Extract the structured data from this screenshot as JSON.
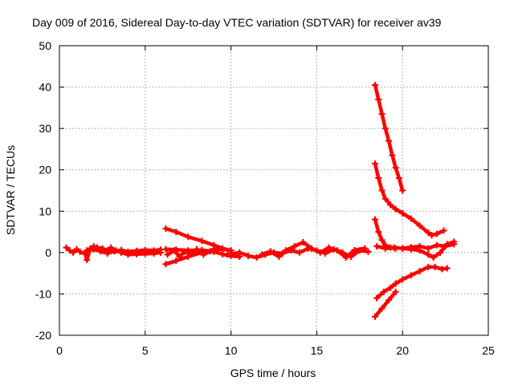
{
  "chart_data": {
    "type": "scatter",
    "title": "Day 009 of 2016, Sidereal Day-to-day VTEC variation (SDTVAR) for receiver av39",
    "xlabel": "GPS time / hours",
    "ylabel": "SDTVAR / TECUs",
    "xlim": [
      0,
      25
    ],
    "ylim": [
      -20,
      50
    ],
    "xticks": [
      0,
      5,
      10,
      15,
      20,
      25
    ],
    "yticks": [
      -20,
      -10,
      0,
      10,
      20,
      30,
      40,
      50
    ],
    "xtick_labels": [
      "0",
      "5",
      "10",
      "15",
      "20",
      "25"
    ],
    "ytick_labels": [
      "-20",
      "-10",
      "0",
      "10",
      "20",
      "30",
      "40",
      "50"
    ],
    "grid": true,
    "marker": "+",
    "color": "#ff0000",
    "series": [
      {
        "name": "near-zero scatter A",
        "points": [
          [
            0.4,
            1.2
          ],
          [
            0.6,
            0.5
          ],
          [
            0.8,
            0.0
          ],
          [
            1.0,
            0.8
          ],
          [
            1.2,
            0.2
          ],
          [
            1.5,
            -0.3
          ],
          [
            1.6,
            -1.8
          ],
          [
            1.8,
            1.0
          ],
          [
            2.0,
            1.5
          ],
          [
            2.2,
            1.2
          ],
          [
            2.5,
            1.0
          ],
          [
            2.8,
            0.5
          ],
          [
            3.0,
            1.2
          ],
          [
            3.3,
            0.5
          ],
          [
            3.6,
            0.0
          ],
          [
            4.0,
            -0.5
          ],
          [
            4.5,
            -0.4
          ],
          [
            5.0,
            -0.3
          ],
          [
            5.5,
            -0.2
          ],
          [
            5.9,
            0.0
          ]
        ]
      },
      {
        "name": "near-zero scatter B",
        "points": [
          [
            1.6,
            0.5
          ],
          [
            2.0,
            0.8
          ],
          [
            2.4,
            0.3
          ],
          [
            2.8,
            -0.2
          ],
          [
            3.2,
            0.3
          ],
          [
            3.6,
            0.6
          ],
          [
            4.0,
            0.2
          ],
          [
            4.5,
            0.4
          ],
          [
            5.0,
            0.6
          ],
          [
            5.5,
            0.5
          ],
          [
            5.9,
            0.7
          ]
        ]
      },
      {
        "name": "upper arc 6-10h",
        "points": [
          [
            6.2,
            5.8
          ],
          [
            6.8,
            5.0
          ],
          [
            7.5,
            3.8
          ],
          [
            8.3,
            2.8
          ],
          [
            9.0,
            1.8
          ],
          [
            9.5,
            1.0
          ],
          [
            10.0,
            0.5
          ]
        ]
      },
      {
        "name": "middle arc 6-10h",
        "points": [
          [
            6.2,
            0.8
          ],
          [
            6.8,
            0.7
          ],
          [
            7.5,
            0.5
          ],
          [
            8.3,
            0.6
          ],
          [
            9.0,
            0.2
          ],
          [
            9.5,
            -0.4
          ],
          [
            10.0,
            -0.8
          ],
          [
            10.5,
            -1.0
          ]
        ]
      },
      {
        "name": "lower arc 6-10h",
        "points": [
          [
            6.2,
            -2.8
          ],
          [
            6.8,
            -2.0
          ],
          [
            7.5,
            -1.0
          ],
          [
            8.3,
            0.0
          ],
          [
            9.0,
            0.7
          ],
          [
            9.5,
            0.8
          ],
          [
            10.0,
            0.5
          ]
        ]
      },
      {
        "name": "cluster 6-8h",
        "points": [
          [
            6.3,
            -0.5
          ],
          [
            6.7,
            0.5
          ],
          [
            7.0,
            -1.0
          ],
          [
            7.3,
            0.2
          ],
          [
            7.7,
            -0.5
          ],
          [
            8.0,
            0.8
          ],
          [
            8.4,
            -0.5
          ],
          [
            8.8,
            0.3
          ]
        ]
      },
      {
        "name": "near-zero scatter 10-18h",
        "points": [
          [
            9.8,
            -0.5
          ],
          [
            10.5,
            0.0
          ],
          [
            11.0,
            -0.8
          ],
          [
            11.5,
            -1.2
          ],
          [
            12.0,
            -0.5
          ],
          [
            12.5,
            0.0
          ],
          [
            13.0,
            -0.2
          ],
          [
            13.5,
            0.5
          ],
          [
            14.0,
            0.0
          ],
          [
            14.5,
            1.0
          ],
          [
            15.0,
            0.5
          ],
          [
            15.5,
            -0.2
          ],
          [
            16.0,
            0.8
          ],
          [
            16.5,
            0.0
          ],
          [
            17.0,
            -1.0
          ],
          [
            17.5,
            0.5
          ],
          [
            18.0,
            0.2
          ]
        ]
      },
      {
        "name": "near-zero scatter 12-18h",
        "points": [
          [
            11.8,
            -0.5
          ],
          [
            12.3,
            0.3
          ],
          [
            12.8,
            -1.0
          ],
          [
            13.2,
            0.5
          ],
          [
            13.7,
            1.5
          ],
          [
            14.2,
            2.5
          ],
          [
            14.7,
            1.0
          ],
          [
            15.2,
            0.0
          ],
          [
            15.7,
            1.2
          ],
          [
            16.2,
            0.5
          ],
          [
            16.7,
            -1.2
          ],
          [
            17.2,
            0.6
          ],
          [
            17.8,
            1.0
          ]
        ]
      },
      {
        "name": "steep descent from 40",
        "points": [
          [
            18.4,
            40.5
          ],
          [
            18.6,
            37.0
          ],
          [
            18.8,
            33.5
          ],
          [
            19.0,
            30.0
          ],
          [
            19.2,
            27.0
          ],
          [
            19.4,
            23.5
          ],
          [
            19.6,
            20.5
          ],
          [
            19.8,
            18.0
          ],
          [
            20.0,
            15.0
          ]
        ]
      },
      {
        "name": "descent from 21",
        "points": [
          [
            18.4,
            21.5
          ],
          [
            18.6,
            18.0
          ],
          [
            18.8,
            15.0
          ],
          [
            19.0,
            13.0
          ],
          [
            19.3,
            11.5
          ],
          [
            19.6,
            10.5
          ],
          [
            20.0,
            9.5
          ],
          [
            20.5,
            8.2
          ],
          [
            21.0,
            6.5
          ],
          [
            21.5,
            4.8
          ],
          [
            21.7,
            4.2
          ],
          [
            22.0,
            4.5
          ],
          [
            22.4,
            5.3
          ]
        ]
      },
      {
        "name": "descent from 8",
        "points": [
          [
            18.4,
            8.0
          ],
          [
            18.6,
            5.0
          ],
          [
            18.8,
            3.0
          ],
          [
            19.0,
            1.8
          ],
          [
            19.3,
            1.2
          ],
          [
            19.6,
            1.0
          ]
        ]
      },
      {
        "name": "flat 18-23h",
        "points": [
          [
            18.5,
            1.5
          ],
          [
            19.0,
            1.0
          ],
          [
            19.5,
            1.2
          ],
          [
            20.0,
            1.0
          ],
          [
            20.5,
            1.3
          ],
          [
            21.0,
            1.5
          ],
          [
            21.5,
            1.0
          ],
          [
            22.0,
            1.8
          ],
          [
            22.5,
            1.5
          ],
          [
            23.0,
            2.0
          ]
        ]
      },
      {
        "name": "dip 20-23h",
        "points": [
          [
            20.0,
            1.0
          ],
          [
            20.5,
            0.8
          ],
          [
            21.0,
            0.5
          ],
          [
            21.5,
            -0.5
          ],
          [
            21.8,
            -1.2
          ],
          [
            22.2,
            0.0
          ],
          [
            22.6,
            2.0
          ],
          [
            23.0,
            2.6
          ]
        ]
      },
      {
        "name": "rise from -11",
        "points": [
          [
            18.5,
            -11.0
          ],
          [
            18.9,
            -9.5
          ],
          [
            19.3,
            -8.5
          ],
          [
            19.6,
            -7.5
          ],
          [
            20.0,
            -6.5
          ],
          [
            20.5,
            -5.5
          ],
          [
            21.0,
            -4.5
          ],
          [
            21.5,
            -3.5
          ],
          [
            21.9,
            -3.5
          ],
          [
            22.3,
            -4.0
          ],
          [
            22.6,
            -3.8
          ]
        ]
      },
      {
        "name": "rise from -15",
        "points": [
          [
            18.4,
            -15.5
          ],
          [
            18.8,
            -13.5
          ],
          [
            19.2,
            -11.5
          ],
          [
            19.6,
            -9.5
          ]
        ]
      }
    ]
  }
}
